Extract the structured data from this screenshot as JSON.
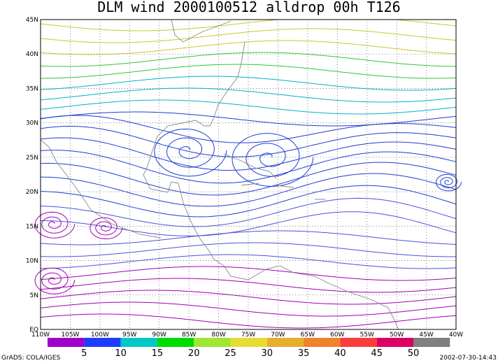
{
  "title": "DLM wind 2000100512 alldrop 00h T126",
  "lat_labels": [
    "EQ",
    "5N",
    "10N",
    "15N",
    "20N",
    "25N",
    "30N",
    "35N",
    "40N",
    "45N"
  ],
  "lon_labels": [
    "110W",
    "105W",
    "100W",
    "95W",
    "90W",
    "85W",
    "80W",
    "75W",
    "70W",
    "65W",
    "60W",
    "55W",
    "50W",
    "45W",
    "40W"
  ],
  "colorbar": {
    "labels": [
      "5",
      "10",
      "15",
      "20",
      "25",
      "30",
      "35",
      "40",
      "45",
      "50"
    ]
  },
  "footer": {
    "left": "GrADS: COLA/IGES",
    "right": "2002-07-30-14:43"
  }
}
